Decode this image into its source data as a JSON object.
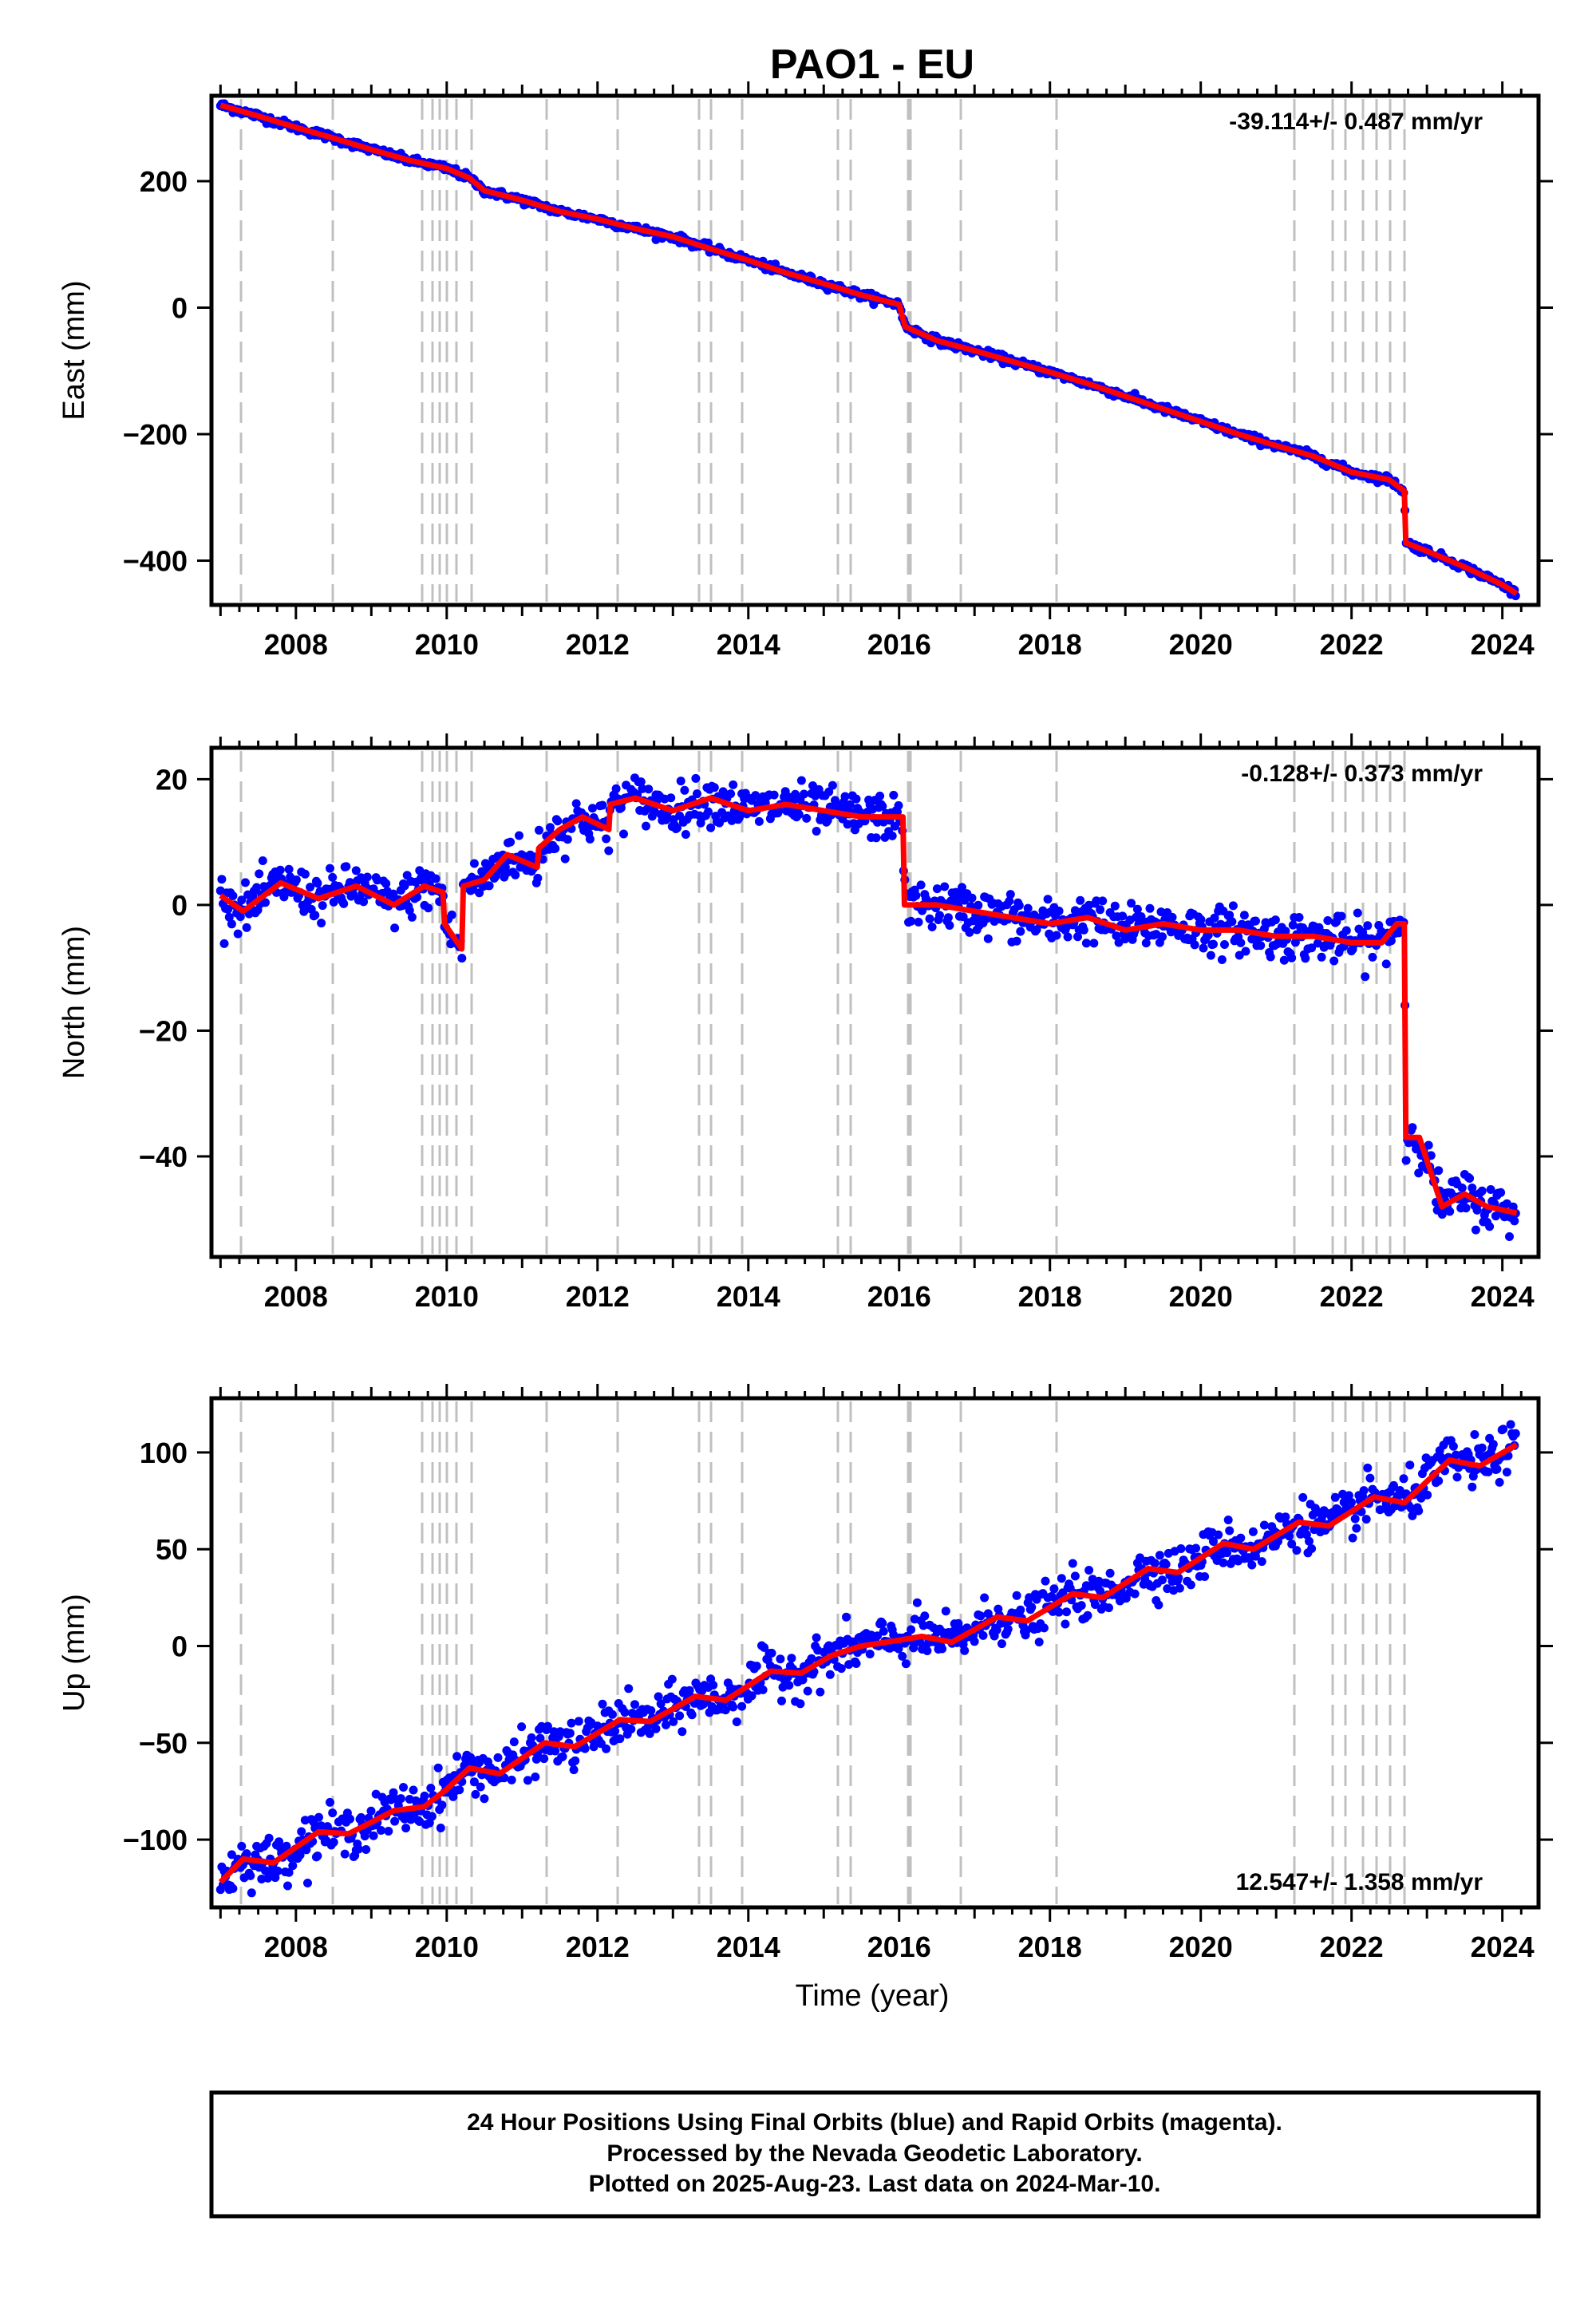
{
  "figure": {
    "title": "PAO1 - EU",
    "xlabel": "Time (year)",
    "colors": {
      "data": "#0000ff",
      "model": "#ff0000",
      "event_lines": "#c0c0c0",
      "frame": "#000000"
    }
  },
  "chart_data": [
    {
      "type": "scatter",
      "component": "East",
      "ylabel": "East (mm)",
      "rate_label": "-39.114+/- 0.487 mm/yr",
      "rate_position": "top-right",
      "xlim": [
        2006.88,
        2024.48
      ],
      "ylim": [
        -470,
        335
      ],
      "xticks": [
        2008,
        2010,
        2012,
        2014,
        2016,
        2018,
        2020,
        2022,
        2024
      ],
      "yticks": [
        -400,
        -200,
        0,
        200
      ],
      "ytick_labels": [
        "−400",
        "−200",
        "0",
        "200"
      ],
      "scatter_sd": 3,
      "x": [
        2007.0,
        2007.5,
        2008.0,
        2008.5,
        2009.0,
        2009.5,
        2010.0,
        2010.3,
        2010.5,
        2011.0,
        2011.5,
        2012.0,
        2012.5,
        2013.0,
        2013.5,
        2014.0,
        2014.5,
        2015.0,
        2015.5,
        2016.0,
        2016.08,
        2016.5,
        2017.0,
        2017.5,
        2018.0,
        2018.5,
        2019.0,
        2019.5,
        2020.0,
        2020.5,
        2021.0,
        2021.5,
        2022.0,
        2022.5,
        2022.7,
        2022.72,
        2023.0,
        2023.5,
        2024.0,
        2024.19
      ],
      "y": [
        320,
        303,
        285,
        268,
        250,
        233,
        220,
        205,
        185,
        170,
        152,
        140,
        125,
        112,
        93,
        75,
        55,
        38,
        20,
        5,
        -30,
        -52,
        -68,
        -85,
        -102,
        -120,
        -140,
        -160,
        -180,
        -200,
        -218,
        -235,
        -260,
        -272,
        -290,
        -372,
        -385,
        -410,
        -438,
        -452
      ]
    },
    {
      "type": "scatter",
      "component": "North",
      "ylabel": "North (mm)",
      "rate_label": "-0.128+/- 0.373 mm/yr",
      "rate_position": "top-right",
      "xlim": [
        2006.88,
        2024.48
      ],
      "ylim": [
        -56,
        25
      ],
      "xticks": [
        2008,
        2010,
        2012,
        2014,
        2016,
        2018,
        2020,
        2022,
        2024
      ],
      "yticks": [
        -40,
        -20,
        0,
        20
      ],
      "ytick_labels": [
        "−40",
        "−20",
        "0",
        "20"
      ],
      "scatter_sd": 1.8,
      "x": [
        2007.0,
        2007.3,
        2007.8,
        2008.3,
        2008.8,
        2009.3,
        2009.7,
        2009.95,
        2009.97,
        2010.2,
        2010.22,
        2010.5,
        2010.8,
        2011.2,
        2011.22,
        2011.5,
        2011.8,
        2012.15,
        2012.17,
        2012.5,
        2013.0,
        2013.5,
        2014.0,
        2014.5,
        2015.0,
        2015.5,
        2016.05,
        2016.07,
        2016.5,
        2017.0,
        2017.5,
        2018.0,
        2018.5,
        2019.0,
        2019.5,
        2020.0,
        2020.5,
        2021.0,
        2021.5,
        2022.0,
        2022.4,
        2022.6,
        2022.7,
        2022.72,
        2022.9,
        2023.2,
        2023.5,
        2023.8,
        2024.19
      ],
      "y": [
        1.5,
        -1,
        3.5,
        1,
        3,
        0,
        3,
        2,
        -3,
        -7,
        3,
        4,
        8,
        6,
        9,
        12,
        14,
        12,
        16,
        17,
        15,
        17,
        15,
        16,
        15,
        14,
        14,
        0,
        0,
        -1,
        -2,
        -3,
        -2,
        -4,
        -3,
        -4,
        -4,
        -5,
        -5,
        -6,
        -6,
        -3,
        -3,
        -37,
        -37,
        -48,
        -46,
        -48,
        -49
      ]
    },
    {
      "type": "scatter",
      "component": "Up",
      "ylabel": "Up (mm)",
      "rate_label": "12.547+/- 1.358 mm/yr",
      "rate_position": "bottom-right",
      "xlim": [
        2006.88,
        2024.48
      ],
      "ylim": [
        -135,
        128
      ],
      "xticks": [
        2008,
        2010,
        2012,
        2014,
        2016,
        2018,
        2020,
        2022,
        2024
      ],
      "yticks": [
        -100,
        -50,
        0,
        50,
        100
      ],
      "ytick_labels": [
        "−100",
        "−50",
        "0",
        "50",
        "100"
      ],
      "scatter_sd": 6,
      "x": [
        2007.0,
        2007.3,
        2007.7,
        2008.3,
        2008.7,
        2009.3,
        2009.7,
        2010.0,
        2010.3,
        2010.7,
        2011.3,
        2011.7,
        2012.3,
        2012.7,
        2013.3,
        2013.7,
        2014.3,
        2014.7,
        2015.1,
        2015.5,
        2016.0,
        2016.3,
        2016.7,
        2017.3,
        2017.7,
        2018.3,
        2018.7,
        2019.3,
        2019.7,
        2020.3,
        2020.7,
        2021.3,
        2021.7,
        2022.3,
        2022.7,
        2023.3,
        2023.7,
        2024.19
      ],
      "y": [
        -122,
        -110,
        -112,
        -96,
        -97,
        -85,
        -83,
        -74,
        -63,
        -66,
        -50,
        -52,
        -38,
        -39,
        -26,
        -28,
        -13,
        -14,
        -5,
        0,
        3,
        5,
        2,
        15,
        13,
        27,
        25,
        40,
        38,
        53,
        50,
        64,
        62,
        77,
        74,
        96,
        93,
        104
      ]
    }
  ],
  "footnote": {
    "line1": "24 Hour Positions Using Final Orbits (blue) and Rapid Orbits (magenta).",
    "line2": "Processed by the Nevada Geodetic Laboratory.",
    "line3": "Plotted on 2025-Aug-23. Last data on 2024-Mar-10."
  }
}
